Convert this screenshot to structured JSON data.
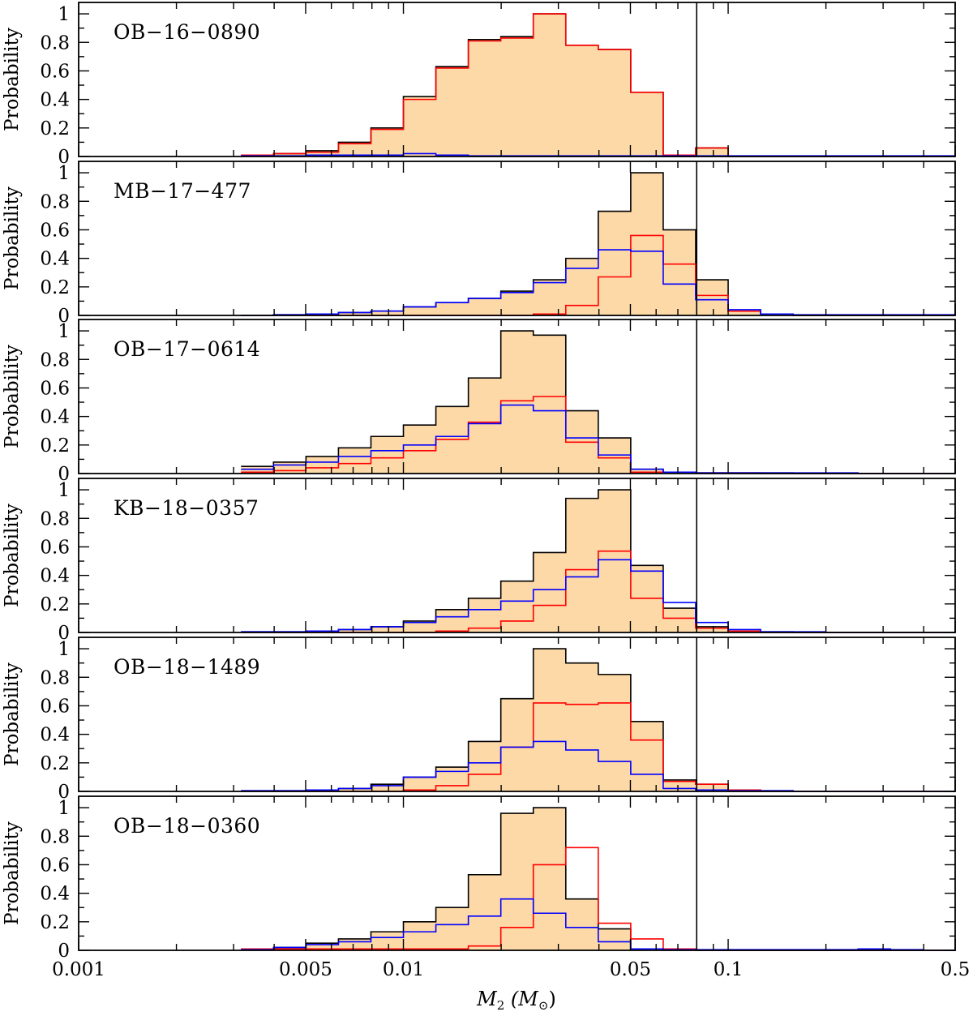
{
  "chart_data": {
    "type": "histogram",
    "x_axis": {
      "label_main": "M",
      "label_sub": "2",
      "label_unit": "(M",
      "label_unit_sub": "⊙",
      "label_close": ")",
      "scale": "log",
      "range": [
        0.001,
        0.5
      ],
      "tick_labels": [
        {
          "value": 0.001,
          "label": "0.001"
        },
        {
          "value": 0.005,
          "label": "0.005"
        },
        {
          "value": 0.01,
          "label": "0.01"
        },
        {
          "value": 0.05,
          "label": "0.05"
        },
        {
          "value": 0.1,
          "label": "0.1"
        },
        {
          "value": 0.5,
          "label": "0.5"
        }
      ]
    },
    "y_axis": {
      "label": "Probability",
      "range": [
        0,
        1.08
      ],
      "tick_labels": [
        {
          "value": 0,
          "label": "0"
        },
        {
          "value": 0.2,
          "label": "0.2"
        },
        {
          "value": 0.4,
          "label": "0.4"
        },
        {
          "value": 0.6,
          "label": "0.6"
        },
        {
          "value": 0.8,
          "label": "0.8"
        },
        {
          "value": 1,
          "label": "1"
        }
      ]
    },
    "reference_line_x": 0.08,
    "bin_edges_log10": [
      -2.5,
      -2.4,
      -2.3,
      -2.2,
      -2.1,
      -2.0,
      -1.9,
      -1.8,
      -1.7,
      -1.6,
      -1.5,
      -1.4,
      -1.3,
      -1.2,
      -1.1,
      -1.0,
      -0.9,
      -0.8,
      -0.7,
      -0.6,
      -0.5,
      -0.4,
      -0.3
    ],
    "series_legend": [
      {
        "name": "total",
        "color": "#000000",
        "fill": "#fdd9a8"
      },
      {
        "name": "red",
        "color": "#ff0000"
      },
      {
        "name": "blue",
        "color": "#0000ff"
      }
    ],
    "panels": [
      {
        "name": "OB−16−0890",
        "total": [
          0.01,
          0.02,
          0.04,
          0.1,
          0.2,
          0.42,
          0.63,
          0.82,
          0.84,
          1.0,
          0.78,
          0.75,
          0.45,
          0.0,
          0.06,
          0.0,
          0,
          0,
          0,
          0,
          0,
          0
        ],
        "red": [
          0.01,
          0.02,
          0.03,
          0.09,
          0.19,
          0.4,
          0.62,
          0.81,
          0.83,
          1.0,
          0.78,
          0.75,
          0.45,
          0.01,
          0.06,
          0.0,
          0,
          0,
          0,
          0,
          0,
          0
        ],
        "blue": [
          0.005,
          0.005,
          0.01,
          0.01,
          0.01,
          0.02,
          0.01,
          0.005,
          0.005,
          0.005,
          0.005,
          0.005,
          0.005,
          0.005,
          0.005,
          0.005,
          0.005,
          0.005,
          0.005,
          0.005,
          0.005,
          0.005
        ]
      },
      {
        "name": "MB−17−477",
        "total": [
          0.0,
          0.005,
          0.01,
          0.02,
          0.03,
          0.06,
          0.09,
          0.12,
          0.17,
          0.25,
          0.4,
          0.73,
          1.0,
          0.6,
          0.25,
          0.03,
          0.01,
          0,
          0,
          0,
          0,
          0
        ],
        "red": [
          0,
          0,
          0,
          0,
          0,
          0,
          0,
          0,
          0,
          0.01,
          0.07,
          0.27,
          0.56,
          0.36,
          0.14,
          0.03,
          0.01,
          0,
          0,
          0,
          0,
          0
        ],
        "blue": [
          0.0,
          0.005,
          0.01,
          0.02,
          0.03,
          0.06,
          0.09,
          0.12,
          0.16,
          0.23,
          0.33,
          0.46,
          0.45,
          0.22,
          0.11,
          0.04,
          0.01,
          0.005,
          0.005,
          0.005,
          0.005,
          0.005
        ]
      },
      {
        "name": "OB−17−0614",
        "total": [
          0.05,
          0.08,
          0.12,
          0.18,
          0.26,
          0.34,
          0.47,
          0.67,
          1.0,
          0.97,
          0.44,
          0.25,
          0.03,
          0.01,
          0.005,
          0.005,
          0.005,
          0,
          0,
          0,
          0,
          0
        ],
        "red": [
          0.01,
          0.02,
          0.04,
          0.07,
          0.11,
          0.16,
          0.24,
          0.36,
          0.51,
          0.54,
          0.22,
          0.11,
          0.01,
          0.01,
          0.005,
          0.005,
          0,
          0,
          0,
          0,
          0,
          0
        ],
        "blue": [
          0.03,
          0.06,
          0.08,
          0.12,
          0.16,
          0.2,
          0.26,
          0.35,
          0.48,
          0.44,
          0.25,
          0.13,
          0.03,
          0.01,
          0.005,
          0.005,
          0.005,
          0.005,
          0.005,
          0,
          0,
          0
        ]
      },
      {
        "name": "KB−18−0357",
        "total": [
          0.005,
          0.005,
          0.01,
          0.02,
          0.04,
          0.08,
          0.16,
          0.24,
          0.36,
          0.56,
          0.94,
          1.0,
          0.47,
          0.17,
          0.04,
          0.01,
          0.005,
          0,
          0,
          0,
          0,
          0
        ],
        "red": [
          0,
          0,
          0,
          0,
          0,
          0,
          0.01,
          0.03,
          0.08,
          0.19,
          0.44,
          0.57,
          0.24,
          0.1,
          0.03,
          0.01,
          0,
          0,
          0,
          0,
          0,
          0
        ],
        "blue": [
          0.005,
          0.005,
          0.01,
          0.02,
          0.04,
          0.07,
          0.11,
          0.16,
          0.22,
          0.3,
          0.39,
          0.51,
          0.43,
          0.21,
          0.07,
          0.02,
          0.005,
          0.005,
          0,
          0,
          0,
          0
        ]
      },
      {
        "name": "OB−18−1489",
        "total": [
          0.005,
          0.005,
          0.01,
          0.02,
          0.05,
          0.1,
          0.17,
          0.35,
          0.65,
          1.0,
          0.9,
          0.82,
          0.49,
          0.08,
          0.05,
          0.01,
          0.005,
          0,
          0,
          0,
          0,
          0
        ],
        "red": [
          0,
          0,
          0,
          0,
          0,
          0.01,
          0.04,
          0.12,
          0.31,
          0.62,
          0.61,
          0.62,
          0.36,
          0.07,
          0.05,
          0.01,
          0,
          0,
          0,
          0,
          0,
          0
        ],
        "blue": [
          0.005,
          0.005,
          0.01,
          0.02,
          0.04,
          0.1,
          0.14,
          0.2,
          0.31,
          0.35,
          0.29,
          0.21,
          0.12,
          0.02,
          0.01,
          0.005,
          0.005,
          0,
          0,
          0,
          0,
          0
        ]
      },
      {
        "name": "OB−18−0360",
        "total": [
          0.01,
          0.02,
          0.05,
          0.08,
          0.13,
          0.2,
          0.3,
          0.53,
          0.96,
          1.0,
          0.36,
          0.15,
          0.01,
          0.005,
          0,
          0,
          0,
          0,
          0,
          0,
          0,
          0
        ],
        "red": [
          0.01,
          0.01,
          0.01,
          0.01,
          0.01,
          0.01,
          0.01,
          0.03,
          0.16,
          0.6,
          0.72,
          0.19,
          0.08,
          0.01,
          0,
          0,
          0,
          0,
          0,
          0,
          0,
          0
        ],
        "blue": [
          0.005,
          0.02,
          0.04,
          0.06,
          0.09,
          0.13,
          0.18,
          0.24,
          0.36,
          0.26,
          0.16,
          0.06,
          0.01,
          0.005,
          0.005,
          0.005,
          0.005,
          0.005,
          0.005,
          0.01,
          0.005,
          0
        ]
      }
    ]
  }
}
